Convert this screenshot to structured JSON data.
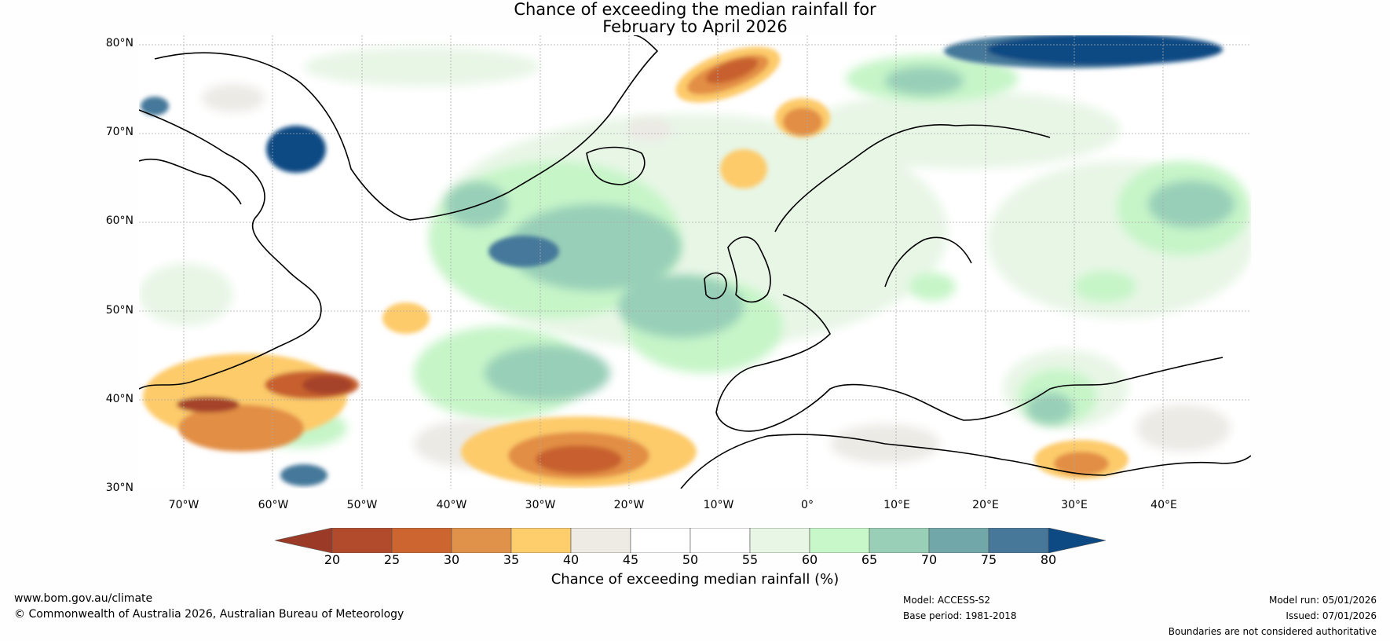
{
  "title": {
    "line1": "Chance of exceeding the median rainfall for",
    "line2": "February to April 2026"
  },
  "map": {
    "lat_labels": [
      "80°N",
      "70°N",
      "60°N",
      "50°N",
      "40°N",
      "30°N"
    ],
    "lon_labels": [
      "70°W",
      "60°W",
      "50°W",
      "40°W",
      "30°W",
      "20°W",
      "10°W",
      "0°",
      "10°E",
      "20°E",
      "30°E",
      "40°E"
    ],
    "colors": {
      "ocean_base": "#ffffff",
      "green_light": "#e8f6e6",
      "green_mid": "#c6f5c8",
      "teal": "#98cfb8",
      "teal_dark": "#70a8a8",
      "blue": "#45789a",
      "blue_dark": "#0d4a83",
      "orange_light": "#fdcb6b",
      "orange": "#e28e44",
      "orange_dark": "#c7602f",
      "red_brown": "#a5422a",
      "grey_light": "#eceae5"
    }
  },
  "colorbar": {
    "ticks": [
      "20",
      "25",
      "30",
      "35",
      "40",
      "45",
      "50",
      "55",
      "60",
      "65",
      "70",
      "75",
      "80"
    ],
    "colors": [
      "#9b3b27",
      "#b24b2b",
      "#cc6530",
      "#e0924a",
      "#fece6c",
      "#eeebe5",
      "#ffffff",
      "#ffffff",
      "#e8f6e6",
      "#c8f7c9",
      "#99cfb7",
      "#72a7aa",
      "#477799",
      "#0d4a83"
    ],
    "label": "Chance of exceeding median rainfall (%)"
  },
  "footer": {
    "website": "www.bom.gov.au/climate",
    "copyright": "© Commonwealth of Australia 2026, Australian Bureau of Meteorology",
    "model": "Model: ACCESS-S2",
    "base_period": "Base period: 1981-2018",
    "model_run": "Model run: 05/01/2026",
    "issued": "Issued: 07/01/2026",
    "disclaimer": "Boundaries are not considered authoritative"
  }
}
